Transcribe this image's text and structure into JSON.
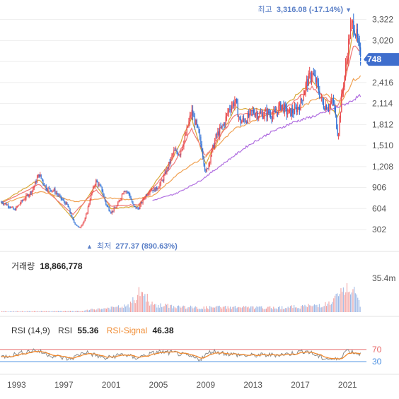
{
  "chart_data": {
    "type": "candlestick",
    "price_panel": {
      "y_ticks": [
        "3,322",
        "3,020",
        "2,718",
        "2,416",
        "2,114",
        "1,812",
        "1,510",
        "1,208",
        "906",
        "604",
        "302"
      ],
      "ylim": [
        150,
        3420
      ],
      "current_price": "2,748",
      "current_value": 2748,
      "high_label": {
        "prefix": "최고",
        "value": "3,316.08 (-17.14%)",
        "marker": "▼"
      },
      "low_label": {
        "prefix": "최저",
        "value": "277.37 (890.63%)",
        "marker": "▲"
      },
      "series": [
        {
          "role": "price",
          "color_up": "#e8474a",
          "color_down": "#2d6fd6"
        },
        {
          "role": "ma-short",
          "color": "#d9a93a"
        },
        {
          "role": "ma-mid",
          "color": "#f07878"
        },
        {
          "role": "ma-long-1",
          "color": "#f0a050"
        },
        {
          "role": "ma-long-2",
          "color": "#b06ee0"
        }
      ],
      "grid": true
    },
    "volume_panel": {
      "label": "거래량",
      "value": "18,866,778",
      "y_tick": "35.4m",
      "ylim": [
        0,
        40
      ]
    },
    "rsi_panel": {
      "label": "RSI (14,9)",
      "rsi_label": "RSI",
      "rsi_value": "55.36",
      "signal_label": "RSI-Signal",
      "signal_value": "46.38",
      "upper_level": "70",
      "lower_level": "30",
      "upper_color": "#e86a6a",
      "lower_color": "#4a90e2",
      "signal_color": "#f08a30"
    },
    "x_ticks": [
      "1993",
      "1997",
      "2001",
      "2005",
      "2009",
      "2013",
      "2017",
      "2021"
    ],
    "x_tick_years": [
      1993,
      1997,
      2001,
      2005,
      2009,
      2013,
      2017,
      2021
    ],
    "xlim": [
      1991.6,
      2022.6
    ],
    "price_anchors": [
      [
        1991.7,
        700
      ],
      [
        1992.4,
        640
      ],
      [
        1992.8,
        580
      ],
      [
        1993.5,
        720
      ],
      [
        1994.3,
        860
      ],
      [
        1994.9,
        1100
      ],
      [
        1995.5,
        900
      ],
      [
        1996.2,
        860
      ],
      [
        1996.8,
        740
      ],
      [
        1997.3,
        650
      ],
      [
        1997.8,
        420
      ],
      [
        1998.3,
        320
      ],
      [
        1998.8,
        450
      ],
      [
        1999.3,
        800
      ],
      [
        1999.7,
        1000
      ],
      [
        2000.2,
        880
      ],
      [
        2000.6,
        650
      ],
      [
        2001.0,
        550
      ],
      [
        2001.5,
        640
      ],
      [
        2002.1,
        880
      ],
      [
        2002.5,
        820
      ],
      [
        2002.9,
        630
      ],
      [
        2003.3,
        600
      ],
      [
        2003.8,
        760
      ],
      [
        2004.3,
        880
      ],
      [
        2004.8,
        880
      ],
      [
        2005.3,
        1000
      ],
      [
        2005.8,
        1200
      ],
      [
        2006.3,
        1420
      ],
      [
        2006.8,
        1400
      ],
      [
        2007.3,
        1650
      ],
      [
        2007.8,
        2000
      ],
      [
        2008.3,
        1750
      ],
      [
        2008.7,
        1450
      ],
      [
        2009.0,
        1100
      ],
      [
        2009.4,
        1350
      ],
      [
        2009.9,
        1650
      ],
      [
        2010.5,
        1800
      ],
      [
        2011.0,
        2050
      ],
      [
        2011.5,
        2150
      ],
      [
        2011.9,
        1850
      ],
      [
        2012.5,
        1900
      ],
      [
        2013.0,
        2000
      ],
      [
        2013.6,
        1950
      ],
      [
        2014.2,
        1980
      ],
      [
        2014.8,
        1950
      ],
      [
        2015.4,
        2100
      ],
      [
        2015.9,
        1980
      ],
      [
        2016.5,
        2000
      ],
      [
        2017.0,
        2100
      ],
      [
        2017.5,
        2400
      ],
      [
        2018.0,
        2550
      ],
      [
        2018.4,
        2400
      ],
      [
        2018.9,
        2100
      ],
      [
        2019.4,
        2080
      ],
      [
        2019.8,
        2150
      ],
      [
        2020.2,
        1650
      ],
      [
        2020.5,
        2200
      ],
      [
        2020.9,
        2700
      ],
      [
        2021.2,
        3150
      ],
      [
        2021.5,
        3280
      ],
      [
        2021.8,
        3050
      ],
      [
        2022.1,
        2748
      ]
    ],
    "ma_anchors": {
      "ma-short": [
        [
          1991.7,
          690
        ],
        [
          1994.9,
          1020
        ],
        [
          1997.8,
          450
        ],
        [
          1999.7,
          950
        ],
        [
          2001.0,
          600
        ],
        [
          2003.3,
          640
        ],
        [
          2006.3,
          1350
        ],
        [
          2007.8,
          1900
        ],
        [
          2009.0,
          1250
        ],
        [
          2011.5,
          2050
        ],
        [
          2015.4,
          2020
        ],
        [
          2018.0,
          2450
        ],
        [
          2020.2,
          1900
        ],
        [
          2021.5,
          3200
        ],
        [
          2022.1,
          2900
        ]
      ],
      "ma-mid": [
        [
          1991.7,
          680
        ],
        [
          1994.9,
          950
        ],
        [
          1997.8,
          520
        ],
        [
          1999.7,
          880
        ],
        [
          2001.0,
          640
        ],
        [
          2003.3,
          660
        ],
        [
          2006.3,
          1250
        ],
        [
          2007.8,
          1750
        ],
        [
          2009.0,
          1350
        ],
        [
          2011.5,
          1950
        ],
        [
          2015.4,
          2000
        ],
        [
          2018.0,
          2350
        ],
        [
          2020.2,
          2050
        ],
        [
          2021.5,
          2950
        ],
        [
          2022.1,
          2850
        ]
      ],
      "ma-long-1": [
        [
          1991.7,
          670
        ],
        [
          1995.0,
          850
        ],
        [
          1998.0,
          700
        ],
        [
          2000.5,
          760
        ],
        [
          2002.5,
          730
        ],
        [
          2004.5,
          780
        ],
        [
          2007.0,
          1150
        ],
        [
          2009.0,
          1350
        ],
        [
          2011.5,
          1750
        ],
        [
          2014.0,
          1950
        ],
        [
          2017.0,
          2050
        ],
        [
          2019.0,
          2250
        ],
        [
          2020.5,
          2150
        ],
        [
          2021.5,
          2450
        ],
        [
          2022.1,
          2500
        ]
      ],
      "ma-long-2": [
        [
          2004.5,
          720
        ],
        [
          2006.5,
          820
        ],
        [
          2008.5,
          1000
        ],
        [
          2010.5,
          1250
        ],
        [
          2012.5,
          1500
        ],
        [
          2014.5,
          1700
        ],
        [
          2016.5,
          1850
        ],
        [
          2018.5,
          1950
        ],
        [
          2020.0,
          2050
        ],
        [
          2021.0,
          2120
        ],
        [
          2022.1,
          2230
        ]
      ]
    },
    "volume_anchors": [
      [
        1991.7,
        1
      ],
      [
        1998.5,
        1.5
      ],
      [
        1999.5,
        4
      ],
      [
        2001.0,
        6
      ],
      [
        2002.5,
        9
      ],
      [
        2003.5,
        30
      ],
      [
        2004.5,
        10
      ],
      [
        2006.5,
        8
      ],
      [
        2008.5,
        6
      ],
      [
        2010.0,
        7
      ],
      [
        2012.0,
        7
      ],
      [
        2014.0,
        6
      ],
      [
        2016.0,
        7
      ],
      [
        2018.0,
        9
      ],
      [
        2019.5,
        12
      ],
      [
        2020.5,
        28
      ],
      [
        2021.2,
        35.4
      ],
      [
        2022.1,
        10
      ]
    ],
    "rsi_anchors": [
      [
        1991.7,
        45
      ],
      [
        1993.0,
        55
      ],
      [
        1994.5,
        68
      ],
      [
        1996.0,
        50
      ],
      [
        1997.5,
        38
      ],
      [
        1998.8,
        62
      ],
      [
        2000.5,
        40
      ],
      [
        2002.0,
        55
      ],
      [
        2003.0,
        42
      ],
      [
        2005.0,
        62
      ],
      [
        2006.5,
        58
      ],
      [
        2008.5,
        38
      ],
      [
        2009.5,
        65
      ],
      [
        2011.0,
        55
      ],
      [
        2012.5,
        50
      ],
      [
        2014.5,
        52
      ],
      [
        2016.0,
        55
      ],
      [
        2017.5,
        66
      ],
      [
        2018.8,
        42
      ],
      [
        2020.2,
        36
      ],
      [
        2020.9,
        68
      ],
      [
        2021.6,
        60
      ],
      [
        2022.1,
        55
      ]
    ]
  }
}
